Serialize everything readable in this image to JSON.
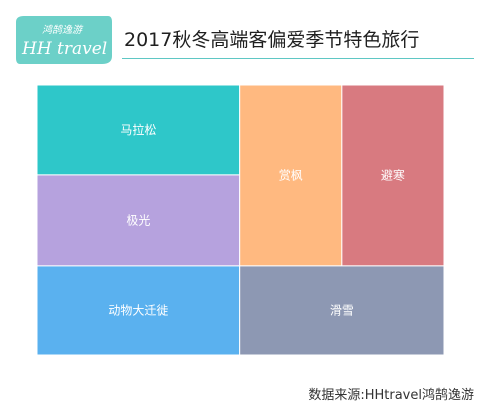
{
  "logo": {
    "line1": "鸿鹄逸游",
    "line2": "HH travel",
    "color": "#6cd0c8"
  },
  "title": "2017秋冬高端客偏爱季节特色旅行",
  "source": "数据来源:HHtravel鸿鹄逸游",
  "chart_data": {
    "type": "treemap",
    "title": "2017秋冬高端客偏爱季节特色旅行",
    "values_shown": false,
    "items": [
      {
        "label": "马拉松",
        "color": "#2ec7c9"
      },
      {
        "label": "极光",
        "color": "#b6a2de"
      },
      {
        "label": "动物大迁徙",
        "color": "#5ab1ef"
      },
      {
        "label": "赏枫",
        "color": "#ffb980"
      },
      {
        "label": "避寒",
        "color": "#d87a80"
      },
      {
        "label": "滑雪",
        "color": "#8d98b3"
      }
    ]
  }
}
